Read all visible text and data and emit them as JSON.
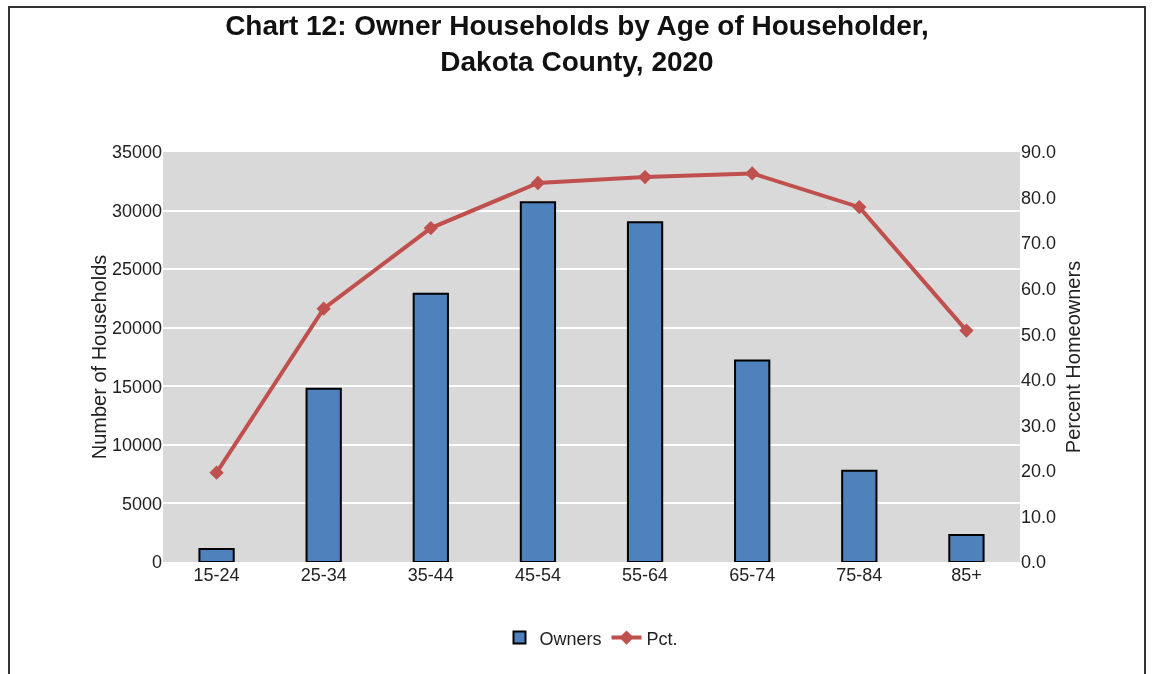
{
  "chart_data": {
    "type": "bar",
    "title": "Chart 12: Owner Households by Age of Householder,\nDakota County, 2020",
    "ylabel": "Number of Households",
    "y2label": "Percent Homeowners",
    "categories": [
      "15-24",
      "25-34",
      "35-44",
      "45-54",
      "55-64",
      "65-74",
      "75-84",
      "85+"
    ],
    "series": [
      {
        "name": "Owners",
        "color": "#4f81bd",
        "values": [
          1100,
          14800,
          22900,
          30700,
          29000,
          17200,
          7800,
          2300
        ]
      },
      {
        "name": "Pct.",
        "type": "line",
        "axis": "y2",
        "color": "#c0504d",
        "marker": "diamond",
        "values": [
          19.6,
          55.6,
          73.3,
          83.2,
          84.5,
          85.3,
          77.9,
          50.8
        ]
      }
    ],
    "ylim": [
      0,
      35000
    ],
    "yticks": [
      0,
      5000,
      10000,
      15000,
      20000,
      25000,
      30000,
      35000
    ],
    "y2lim": [
      0,
      90
    ],
    "y2ticks": [
      {
        "value": 0,
        "label": "0.0"
      },
      {
        "value": 10,
        "label": "10.0"
      },
      {
        "value": 20,
        "label": "20.0"
      },
      {
        "value": 30,
        "label": "30.0"
      },
      {
        "value": 40,
        "label": "40.0"
      },
      {
        "value": 50,
        "label": "50.0"
      },
      {
        "value": 60,
        "label": "60.0"
      },
      {
        "value": 70,
        "label": "70.0"
      },
      {
        "value": 80,
        "label": "80.0"
      },
      {
        "value": 90,
        "label": "90.0"
      }
    ],
    "grid": "y",
    "legend": "bottom"
  }
}
